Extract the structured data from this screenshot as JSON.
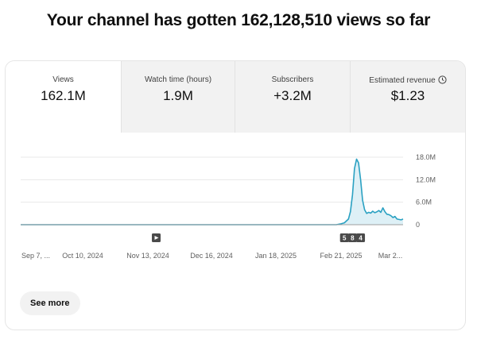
{
  "headline": "Your channel has gotten 162,128,510 views so far",
  "metrics": [
    {
      "label": "Views",
      "value": "162.1M",
      "active": true
    },
    {
      "label": "Watch time (hours)",
      "value": "1.9M",
      "active": false
    },
    {
      "label": "Subscribers",
      "value": "+3.2M",
      "active": false
    },
    {
      "label": "Estimated revenue",
      "value": "$1.23",
      "active": false,
      "icon": "clock-icon"
    }
  ],
  "see_more_label": "See more",
  "chart_data": {
    "type": "area",
    "x_tick_labels": [
      "Sep 7, ...",
      "Oct 10, 2024",
      "Nov 13, 2024",
      "Dec 16, 2024",
      "Jan 18, 2025",
      "Feb 21, 2025",
      "Mar 2..."
    ],
    "y_tick_labels": [
      "18.0M",
      "12.0M",
      "6.0M",
      "0"
    ],
    "ylim": [
      0,
      18000000
    ],
    "grid": true,
    "line_color": "#2aa1c2",
    "fill_color": "#def0f6",
    "series": [
      {
        "x": [
          "2024-09-07",
          "2024-10-10",
          "2024-11-13",
          "2024-12-16",
          "2025-01-18",
          "2025-02-10",
          "2025-02-12",
          "2025-02-14",
          "2025-02-16",
          "2025-02-17",
          "2025-02-18",
          "2025-02-19",
          "2025-02-20",
          "2025-02-21",
          "2025-02-22",
          "2025-02-23",
          "2025-02-24",
          "2025-02-25",
          "2025-02-26",
          "2025-02-27",
          "2025-02-28",
          "2025-03-01",
          "2025-03-02",
          "2025-03-03",
          "2025-03-04",
          "2025-03-05",
          "2025-03-06",
          "2025-03-07",
          "2025-03-08",
          "2025-03-09",
          "2025-03-10",
          "2025-03-11",
          "2025-03-12",
          "2025-03-13",
          "2025-03-14",
          "2025-03-15"
        ],
        "values": [
          0,
          0,
          0,
          0,
          0,
          0,
          200000,
          500000,
          1500000,
          3500000,
          8000000,
          15000000,
          17500000,
          16500000,
          12000000,
          6500000,
          4000000,
          3000000,
          3300000,
          3100000,
          3600000,
          3200000,
          3400000,
          3800000,
          3300000,
          4500000,
          3500000,
          2800000,
          2700000,
          2400000,
          1900000,
          2200000,
          1500000,
          1400000,
          1300000,
          1500000
        ]
      }
    ],
    "markers": [
      {
        "date": "2024-11-13",
        "label": "",
        "icon": "play-icon"
      },
      {
        "date": "2025-02-14",
        "label": "5"
      },
      {
        "date": "2025-02-18",
        "label": "8"
      },
      {
        "date": "2025-02-22",
        "label": "4"
      }
    ]
  }
}
